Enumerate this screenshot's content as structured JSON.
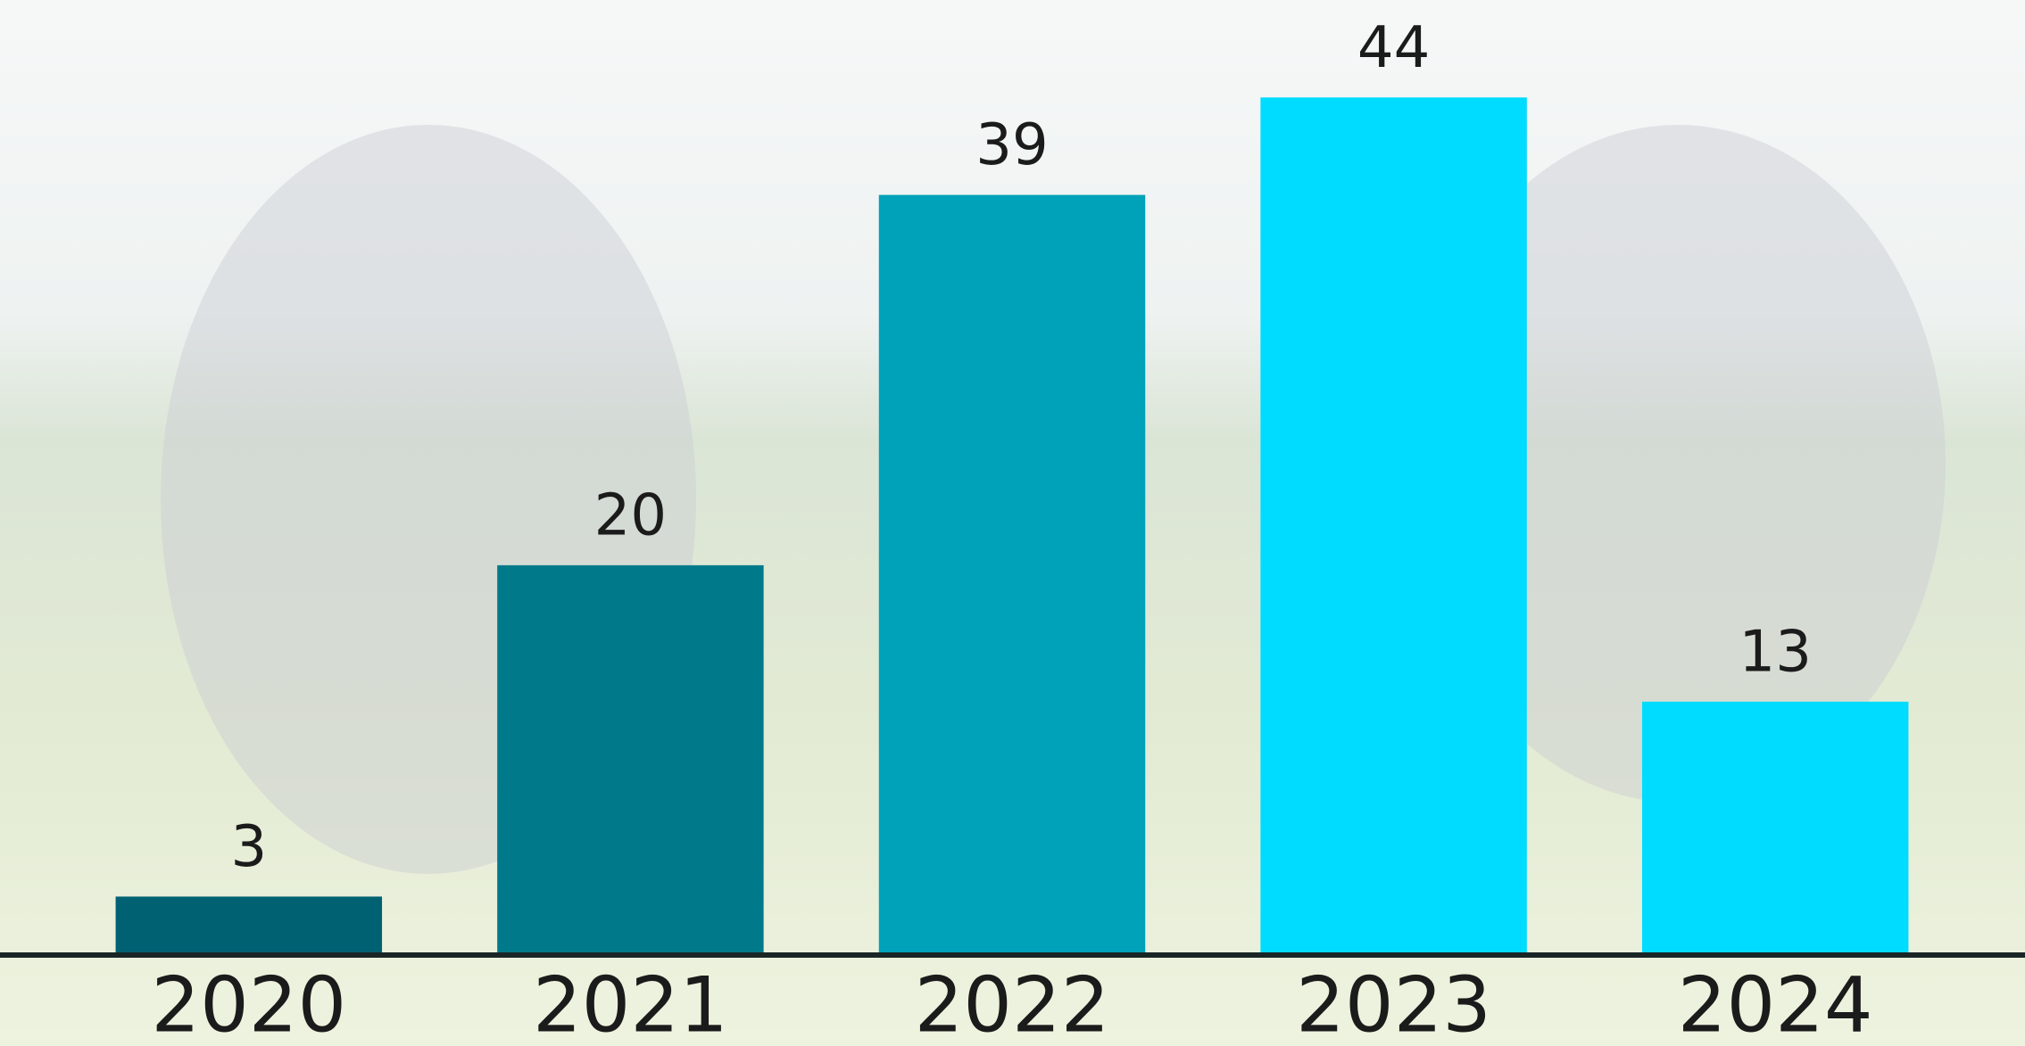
{
  "chart_data": {
    "type": "bar",
    "categories": [
      "2020",
      "2021",
      "2022",
      "2023",
      "2024"
    ],
    "values": [
      3,
      20,
      39,
      44,
      13
    ],
    "colors": [
      "#006173",
      "#007a8a",
      "#00a2ba",
      "#00dcff",
      "#00dcff"
    ],
    "ylim": [
      0,
      49
    ]
  }
}
